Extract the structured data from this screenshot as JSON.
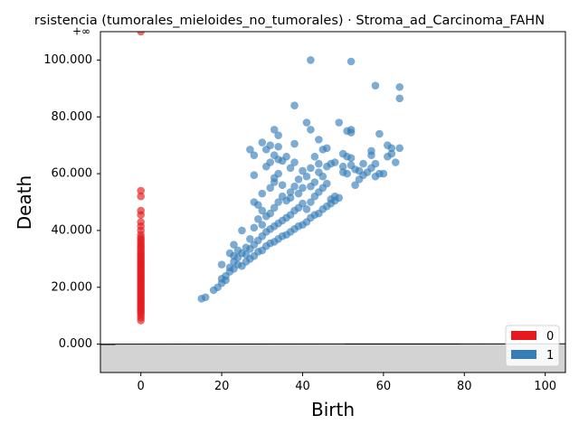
{
  "chart_data": {
    "type": "scatter",
    "title": "rsistencia (tumorales_mieloides_no_tumorales) · Stroma_ad_Carcinoma_FAHN",
    "xlabel": "Birth",
    "ylabel": "Death",
    "xlim": [
      -10,
      105
    ],
    "ylim": [
      -10000,
      110000
    ],
    "xticks": [
      0,
      20,
      40,
      60,
      80,
      100
    ],
    "yticks": [
      0,
      20000,
      40000,
      60000,
      80000,
      100000
    ],
    "ytick_labels": [
      "0.000",
      "20.000",
      "40.000",
      "60.000",
      "80.000",
      "100.000"
    ],
    "infinity_label": "+∞",
    "infinity_value": 110000,
    "diagonal": true,
    "grid": false,
    "legend_position": "bottom-right",
    "legend": [
      {
        "label": "0",
        "color": "#e41a1c"
      },
      {
        "label": "1",
        "color": "#377eb8"
      }
    ],
    "series": [
      {
        "name": "0",
        "color": "#e41a1c",
        "points": [
          [
            0,
            110000
          ],
          [
            0,
            54000
          ],
          [
            0,
            52000
          ],
          [
            0,
            47000
          ],
          [
            0,
            45500
          ],
          [
            0,
            43000
          ],
          [
            0,
            41500
          ],
          [
            0,
            40000
          ],
          [
            0,
            38500
          ],
          [
            0,
            37500
          ],
          [
            0,
            36800
          ],
          [
            0,
            36000
          ],
          [
            0,
            35200
          ],
          [
            0,
            34500
          ],
          [
            0,
            33800
          ],
          [
            0,
            33000
          ],
          [
            0,
            32300
          ],
          [
            0,
            31600
          ],
          [
            0,
            31000
          ],
          [
            0,
            30300
          ],
          [
            0,
            29700
          ],
          [
            0,
            29000
          ],
          [
            0,
            28400
          ],
          [
            0,
            27800
          ],
          [
            0,
            27200
          ],
          [
            0,
            26600
          ],
          [
            0,
            26000
          ],
          [
            0,
            25400
          ],
          [
            0,
            24800
          ],
          [
            0,
            24200
          ],
          [
            0,
            23600
          ],
          [
            0,
            23000
          ],
          [
            0,
            22400
          ],
          [
            0,
            21800
          ],
          [
            0,
            21200
          ],
          [
            0,
            20600
          ],
          [
            0,
            20000
          ],
          [
            0,
            19400
          ],
          [
            0,
            18800
          ],
          [
            0,
            18200
          ],
          [
            0,
            17600
          ],
          [
            0,
            17000
          ],
          [
            0,
            16400
          ],
          [
            0,
            15800
          ],
          [
            0,
            15200
          ],
          [
            0,
            14600
          ],
          [
            0,
            14000
          ],
          [
            0,
            13400
          ],
          [
            0,
            12800
          ],
          [
            0,
            12200
          ],
          [
            0,
            11600
          ],
          [
            0,
            11000
          ],
          [
            0,
            10200
          ],
          [
            0,
            9300
          ],
          [
            0,
            8300
          ]
        ]
      },
      {
        "name": "1",
        "color": "#377eb8",
        "points": [
          [
            15,
            16000
          ],
          [
            16,
            16500
          ],
          [
            18,
            19000
          ],
          [
            19,
            20000
          ],
          [
            20,
            21500
          ],
          [
            20,
            23000
          ],
          [
            20,
            28000
          ],
          [
            21,
            22500
          ],
          [
            21,
            24000
          ],
          [
            22,
            25500
          ],
          [
            22,
            27000
          ],
          [
            22,
            32000
          ],
          [
            23,
            26500
          ],
          [
            23,
            29000
          ],
          [
            23,
            31000
          ],
          [
            23,
            35000
          ],
          [
            24,
            28000
          ],
          [
            24,
            30500
          ],
          [
            24,
            33000
          ],
          [
            25,
            27500
          ],
          [
            25,
            32000
          ],
          [
            25,
            40000
          ],
          [
            26,
            29000
          ],
          [
            26,
            31500
          ],
          [
            26,
            34000
          ],
          [
            27,
            30000
          ],
          [
            27,
            33500
          ],
          [
            27,
            37000
          ],
          [
            28,
            31000
          ],
          [
            28,
            35000
          ],
          [
            28,
            41000
          ],
          [
            28,
            50000
          ],
          [
            28,
            59500
          ],
          [
            28,
            66500
          ],
          [
            27,
            68500
          ],
          [
            29,
            32500
          ],
          [
            29,
            36500
          ],
          [
            29,
            44000
          ],
          [
            29,
            49000
          ],
          [
            30,
            33000
          ],
          [
            30,
            38000
          ],
          [
            30,
            42000
          ],
          [
            30,
            47000
          ],
          [
            30,
            53000
          ],
          [
            30,
            71000
          ],
          [
            31,
            34500
          ],
          [
            31,
            39500
          ],
          [
            31,
            45000
          ],
          [
            31,
            62500
          ],
          [
            31,
            68500
          ],
          [
            32,
            35500
          ],
          [
            32,
            40500
          ],
          [
            32,
            46000
          ],
          [
            32,
            55000
          ],
          [
            32,
            64000
          ],
          [
            32,
            70000
          ],
          [
            33,
            36000
          ],
          [
            33,
            41500
          ],
          [
            33,
            48000
          ],
          [
            33,
            57000
          ],
          [
            33,
            58500
          ],
          [
            33,
            66500
          ],
          [
            33,
            75500
          ],
          [
            34,
            37000
          ],
          [
            34,
            42500
          ],
          [
            34,
            50000
          ],
          [
            34,
            60000
          ],
          [
            34,
            65000
          ],
          [
            34,
            69500
          ],
          [
            34,
            73500
          ],
          [
            35,
            38000
          ],
          [
            35,
            43500
          ],
          [
            35,
            52000
          ],
          [
            35,
            56000
          ],
          [
            35,
            64500
          ],
          [
            36,
            38500
          ],
          [
            36,
            44500
          ],
          [
            36,
            50500
          ],
          [
            36,
            66000
          ],
          [
            37,
            39500
          ],
          [
            37,
            45500
          ],
          [
            37,
            51500
          ],
          [
            37,
            53500
          ],
          [
            37,
            62000
          ],
          [
            38,
            40500
          ],
          [
            38,
            47000
          ],
          [
            38,
            55500
          ],
          [
            38,
            70500
          ],
          [
            38,
            64000
          ],
          [
            38,
            84000
          ],
          [
            39,
            41500
          ],
          [
            39,
            48000
          ],
          [
            39,
            53000
          ],
          [
            39,
            58000
          ],
          [
            40,
            42000
          ],
          [
            40,
            49500
          ],
          [
            40,
            55000
          ],
          [
            40,
            61000
          ],
          [
            41,
            43000
          ],
          [
            41,
            47500
          ],
          [
            41,
            59000
          ],
          [
            41,
            78000
          ],
          [
            42,
            44500
          ],
          [
            42,
            50000
          ],
          [
            42,
            55500
          ],
          [
            42,
            62000
          ],
          [
            42,
            75500
          ],
          [
            42,
            100000
          ],
          [
            43,
            45500
          ],
          [
            43,
            52000
          ],
          [
            43,
            57000
          ],
          [
            43,
            66000
          ],
          [
            44,
            46000
          ],
          [
            44,
            53500
          ],
          [
            44,
            60500
          ],
          [
            44,
            63500
          ],
          [
            44,
            72000
          ],
          [
            45,
            47500
          ],
          [
            45,
            55000
          ],
          [
            45,
            59000
          ],
          [
            45,
            68500
          ],
          [
            46,
            48500
          ],
          [
            46,
            56500
          ],
          [
            46,
            62500
          ],
          [
            46,
            69000
          ],
          [
            47,
            49500
          ],
          [
            47,
            51000
          ],
          [
            47,
            63500
          ],
          [
            48,
            50500
          ],
          [
            48,
            52000
          ],
          [
            48,
            64000
          ],
          [
            49,
            51500
          ],
          [
            49,
            78000
          ],
          [
            50,
            60500
          ],
          [
            50,
            62500
          ],
          [
            50,
            67000
          ],
          [
            51,
            60000
          ],
          [
            51,
            66000
          ],
          [
            51,
            75000
          ],
          [
            52,
            63000
          ],
          [
            52,
            65500
          ],
          [
            52,
            74500
          ],
          [
            52,
            75500
          ],
          [
            52,
            99500
          ],
          [
            53,
            56000
          ],
          [
            53,
            61500
          ],
          [
            54,
            58000
          ],
          [
            54,
            61000
          ],
          [
            55,
            59500
          ],
          [
            55,
            63500
          ],
          [
            56,
            60500
          ],
          [
            57,
            62000
          ],
          [
            57,
            66500
          ],
          [
            57,
            68000
          ],
          [
            58,
            59000
          ],
          [
            58,
            63500
          ],
          [
            58,
            91000
          ],
          [
            59,
            60000
          ],
          [
            59,
            74000
          ],
          [
            60,
            60000
          ],
          [
            61,
            66000
          ],
          [
            61,
            70000
          ],
          [
            62,
            67000
          ],
          [
            62,
            69000
          ],
          [
            63,
            64000
          ],
          [
            64,
            86500
          ],
          [
            64,
            90500
          ],
          [
            64,
            69000
          ]
        ]
      }
    ]
  }
}
